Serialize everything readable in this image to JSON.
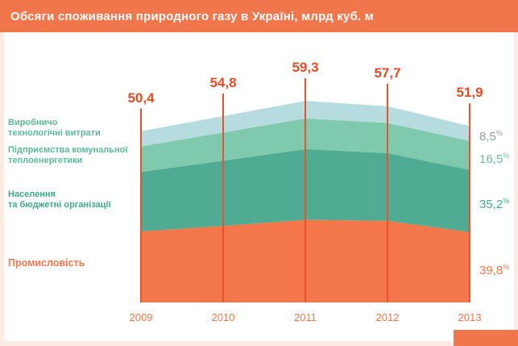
{
  "header": {
    "title": "Обсяги споживання природного газу в Україні, млрд куб. м"
  },
  "chart_data": {
    "type": "area",
    "stacked": true,
    "title": "Обсяги споживання природного газу в Україні, млрд куб. м",
    "unit": "млрд куб. м",
    "categories": [
      "2009",
      "2010",
      "2011",
      "2012",
      "2013"
    ],
    "totals_display": [
      "50,4",
      "54,8",
      "59,3",
      "57,7",
      "51,9"
    ],
    "totals": [
      50.4,
      54.8,
      59.3,
      57.7,
      51.9
    ],
    "series": [
      {
        "id": "industry",
        "name": "Промисловість",
        "color": "#F4764B",
        "values": [
          20.9,
          22.5,
          24.3,
          24.0,
          20.7
        ],
        "pct_2013_display": "39,8",
        "pct_unit": "%",
        "pct_color": "#F4764B"
      },
      {
        "id": "households",
        "name": "Населення та бюджетні організації",
        "color": "#4FAC92",
        "values": [
          17.5,
          19.2,
          20.8,
          19.9,
          18.3
        ],
        "pct_2013_display": "35,2",
        "pct_unit": "%",
        "pct_color": "#45A88E"
      },
      {
        "id": "municipal-heat",
        "name": "Підприємства комунальної теплоенергетики",
        "color": "#7FC9AE",
        "values": [
          7.5,
          8.3,
          9.0,
          8.9,
          8.5
        ],
        "pct_2013_display": "16,5",
        "pct_unit": "%",
        "pct_color": "#6BBFA3"
      },
      {
        "id": "production-losses",
        "name": "Виробничо технологічні витрати",
        "color": "#B7DCE0",
        "values": [
          4.5,
          4.8,
          5.2,
          4.9,
          4.4
        ],
        "pct_2013_display": "8,5",
        "pct_unit": "%",
        "pct_color": "#8C9EA3"
      }
    ],
    "legend": [
      {
        "label": "Виробничо\nтехнологічні витрати",
        "color": "#5BB79D"
      },
      {
        "label": "Підприємства комунальної\nтеплоенергетики",
        "color": "#5BB79D"
      },
      {
        "label": "Населення\nта бюджетні організації",
        "color": "#3EA78C"
      },
      {
        "label": "Промисловість",
        "color": "#F4764B"
      }
    ],
    "style": {
      "line_color": "#E8522C",
      "value_label_color": "#E44C26",
      "year_label_color": "#F0764A",
      "legend_position": "left",
      "grid": false
    }
  }
}
